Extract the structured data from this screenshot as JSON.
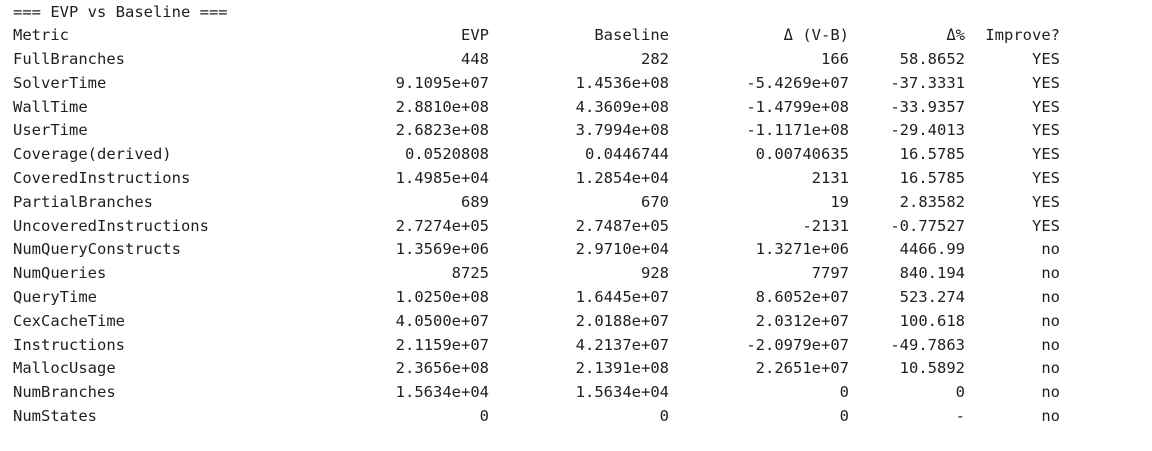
{
  "title": "=== EVP vs Baseline ===",
  "columns": {
    "metric": "Metric",
    "evp": "EVP",
    "baseline": "Baseline",
    "delta": "Δ (V-B)",
    "pct": "Δ%",
    "improve": "Improve?"
  },
  "rows": [
    {
      "metric": "FullBranches",
      "evp": "448",
      "baseline": "282",
      "delta": "166",
      "pct": "58.8652",
      "improve": "YES"
    },
    {
      "metric": "SolverTime",
      "evp": "9.1095e+07",
      "baseline": "1.4536e+08",
      "delta": "-5.4269e+07",
      "pct": "-37.3331",
      "improve": "YES"
    },
    {
      "metric": "WallTime",
      "evp": "2.8810e+08",
      "baseline": "4.3609e+08",
      "delta": "-1.4799e+08",
      "pct": "-33.9357",
      "improve": "YES"
    },
    {
      "metric": "UserTime",
      "evp": "2.6823e+08",
      "baseline": "3.7994e+08",
      "delta": "-1.1171e+08",
      "pct": "-29.4013",
      "improve": "YES"
    },
    {
      "metric": "Coverage(derived)",
      "evp": "0.0520808",
      "baseline": "0.0446744",
      "delta": "0.00740635",
      "pct": "16.5785",
      "improve": "YES"
    },
    {
      "metric": "CoveredInstructions",
      "evp": "1.4985e+04",
      "baseline": "1.2854e+04",
      "delta": "2131",
      "pct": "16.5785",
      "improve": "YES"
    },
    {
      "metric": "PartialBranches",
      "evp": "689",
      "baseline": "670",
      "delta": "19",
      "pct": "2.83582",
      "improve": "YES"
    },
    {
      "metric": "UncoveredInstructions",
      "evp": "2.7274e+05",
      "baseline": "2.7487e+05",
      "delta": "-2131",
      "pct": "-0.77527",
      "improve": "YES"
    },
    {
      "metric": "NumQueryConstructs",
      "evp": "1.3569e+06",
      "baseline": "2.9710e+04",
      "delta": "1.3271e+06",
      "pct": "4466.99",
      "improve": "no"
    },
    {
      "metric": "NumQueries",
      "evp": "8725",
      "baseline": "928",
      "delta": "7797",
      "pct": "840.194",
      "improve": "no"
    },
    {
      "metric": "QueryTime",
      "evp": "1.0250e+08",
      "baseline": "1.6445e+07",
      "delta": "8.6052e+07",
      "pct": "523.274",
      "improve": "no"
    },
    {
      "metric": "CexCacheTime",
      "evp": "4.0500e+07",
      "baseline": "2.0188e+07",
      "delta": "2.0312e+07",
      "pct": "100.618",
      "improve": "no"
    },
    {
      "metric": "Instructions",
      "evp": "2.1159e+07",
      "baseline": "4.2137e+07",
      "delta": "-2.0979e+07",
      "pct": "-49.7863",
      "improve": "no"
    },
    {
      "metric": "MallocUsage",
      "evp": "2.3656e+08",
      "baseline": "2.1391e+08",
      "delta": "2.2651e+07",
      "pct": "10.5892",
      "improve": "no"
    },
    {
      "metric": "NumBranches",
      "evp": "1.5634e+04",
      "baseline": "1.5634e+04",
      "delta": "0",
      "pct": "0",
      "improve": "no"
    },
    {
      "metric": "NumStates",
      "evp": "0",
      "baseline": "0",
      "delta": "0",
      "pct": "-",
      "improve": "no"
    }
  ]
}
